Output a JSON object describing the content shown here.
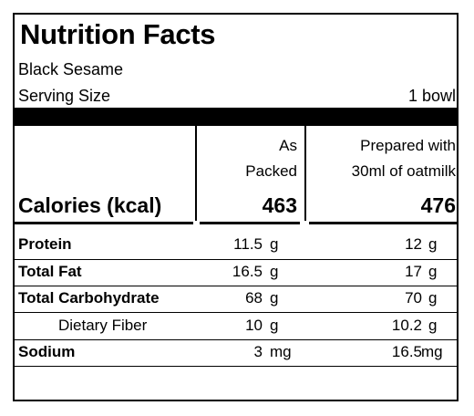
{
  "title": "Nutrition Facts",
  "product": "Black Sesame",
  "serving": {
    "label": "Serving Size",
    "value": "1 bowl"
  },
  "columns": {
    "packed": [
      "As",
      "Packed"
    ],
    "prepared": [
      "Prepared with",
      "30ml of oatmilk"
    ]
  },
  "calories": {
    "label": "Calories (kcal)",
    "packed": "463",
    "prepared": "476"
  },
  "nutrients": [
    {
      "label": "Protein",
      "packed_value": "11.5",
      "packed_unit": "g",
      "prepared_value": "12",
      "prepared_unit": "g"
    },
    {
      "label": "Total Fat",
      "packed_value": "16.5",
      "packed_unit": "g",
      "prepared_value": "17",
      "prepared_unit": "g"
    },
    {
      "label": "Total Carbohydrate",
      "packed_value": "68",
      "packed_unit": "g",
      "prepared_value": "70",
      "prepared_unit": "g"
    },
    {
      "label": "Dietary Fiber",
      "packed_value": "10",
      "packed_unit": "g",
      "prepared_value": "10.2",
      "prepared_unit": "g"
    },
    {
      "label": "Sodium",
      "packed_value": "3",
      "packed_unit": "mg",
      "prepared_value": "16.5",
      "prepared_unit": "mg"
    }
  ]
}
